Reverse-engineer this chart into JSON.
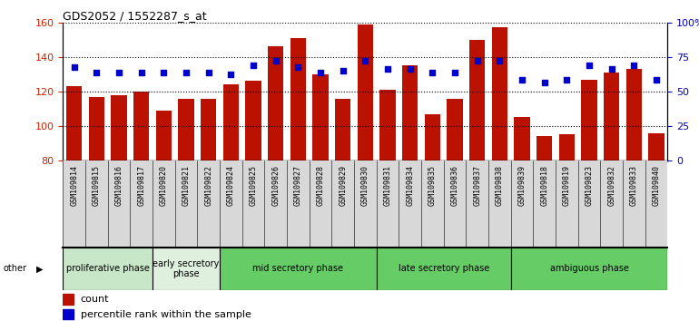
{
  "title": "GDS2052 / 1552287_s_at",
  "samples": [
    "GSM109814",
    "GSM109815",
    "GSM109816",
    "GSM109817",
    "GSM109820",
    "GSM109821",
    "GSM109822",
    "GSM109824",
    "GSM109825",
    "GSM109826",
    "GSM109827",
    "GSM109828",
    "GSM109829",
    "GSM109830",
    "GSM109831",
    "GSM109834",
    "GSM109835",
    "GSM109836",
    "GSM109837",
    "GSM109838",
    "GSM109839",
    "GSM109818",
    "GSM109819",
    "GSM109823",
    "GSM109832",
    "GSM109833",
    "GSM109840"
  ],
  "counts": [
    123,
    117,
    118,
    120,
    109,
    116,
    116,
    124,
    126,
    146,
    151,
    130,
    116,
    159,
    121,
    135,
    107,
    116,
    150,
    157,
    105,
    94,
    95,
    127,
    131,
    133,
    96
  ],
  "percentiles": [
    134,
    131,
    131,
    131,
    131,
    131,
    131,
    130,
    135,
    138,
    134,
    131,
    132,
    138,
    133,
    133,
    131,
    131,
    138,
    138,
    127,
    125,
    127,
    135,
    133,
    135,
    127
  ],
  "ylim_left": [
    80,
    160
  ],
  "ylim_right": [
    0,
    100
  ],
  "bar_color": "#bb1100",
  "dot_color": "#0000cc",
  "phase_labels": [
    "proliferative phase",
    "early secretory\nphase",
    "mid secretory phase",
    "late secretory phase",
    "ambiguous phase"
  ],
  "phase_starts": [
    0,
    4,
    7,
    14,
    20
  ],
  "phase_ends": [
    4,
    7,
    14,
    20,
    27
  ],
  "phase_colors": [
    "#c8e6c8",
    "#dff0df",
    "#66cc66",
    "#66cc66",
    "#66cc66"
  ],
  "other_label": "other",
  "legend_count": "count",
  "legend_percentile": "percentile rank within the sample",
  "tick_bg_color": "#d8d8d8"
}
